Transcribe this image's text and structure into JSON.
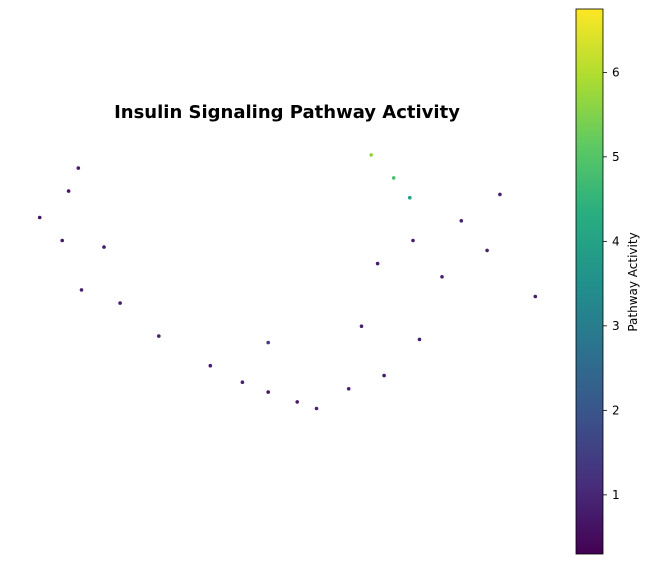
{
  "chart_data": {
    "type": "scatter",
    "title": "Insulin Signaling Pathway Activity",
    "xlabel": "",
    "ylabel": "",
    "axes_visible": false,
    "grid": false,
    "colormap": "viridis",
    "colorbar": {
      "label": "Pathway Activity",
      "range": [
        0.3,
        6.75
      ],
      "ticks": [
        1,
        2,
        3,
        4,
        5,
        6
      ],
      "tick_labels": [
        "1",
        "2",
        "3",
        "4",
        "5",
        "6"
      ],
      "position": "right"
    },
    "point_color_hex": "#440154",
    "series": [
      {
        "name": "",
        "points": [
          {
            "x": 1.5,
            "y": 10.3,
            "value": 0.8
          },
          {
            "x": 1.2,
            "y": 9.6,
            "value": 0.7
          },
          {
            "x": 0.3,
            "y": 8.8,
            "value": 0.6
          },
          {
            "x": 1.0,
            "y": 8.1,
            "value": 0.7
          },
          {
            "x": 2.3,
            "y": 7.9,
            "value": 0.8
          },
          {
            "x": 1.6,
            "y": 6.6,
            "value": 0.9
          },
          {
            "x": 2.8,
            "y": 6.2,
            "value": 0.8
          },
          {
            "x": 4.0,
            "y": 5.2,
            "value": 0.9
          },
          {
            "x": 5.6,
            "y": 4.3,
            "value": 0.8
          },
          {
            "x": 6.6,
            "y": 3.8,
            "value": 0.9
          },
          {
            "x": 7.4,
            "y": 3.5,
            "value": 0.7
          },
          {
            "x": 8.3,
            "y": 3.2,
            "value": 0.8
          },
          {
            "x": 8.9,
            "y": 3.0,
            "value": 0.9
          },
          {
            "x": 7.4,
            "y": 5.0,
            "value": 1.5
          },
          {
            "x": 9.9,
            "y": 3.6,
            "value": 0.9
          },
          {
            "x": 11.0,
            "y": 4.0,
            "value": 0.8
          },
          {
            "x": 10.3,
            "y": 5.5,
            "value": 0.9
          },
          {
            "x": 10.8,
            "y": 7.4,
            "value": 0.8
          },
          {
            "x": 11.9,
            "y": 8.1,
            "value": 0.8
          },
          {
            "x": 12.8,
            "y": 7.0,
            "value": 0.9
          },
          {
            "x": 12.1,
            "y": 5.1,
            "value": 0.8
          },
          {
            "x": 13.4,
            "y": 8.7,
            "value": 0.9
          },
          {
            "x": 14.6,
            "y": 9.5,
            "value": 0.8
          },
          {
            "x": 14.2,
            "y": 7.8,
            "value": 0.9
          },
          {
            "x": 15.7,
            "y": 6.4,
            "value": 0.8
          },
          {
            "x": 10.6,
            "y": 10.7,
            "value": 5.6
          },
          {
            "x": 11.3,
            "y": 10.0,
            "value": 4.8
          },
          {
            "x": 11.8,
            "y": 9.4,
            "value": 3.9
          }
        ]
      }
    ]
  }
}
